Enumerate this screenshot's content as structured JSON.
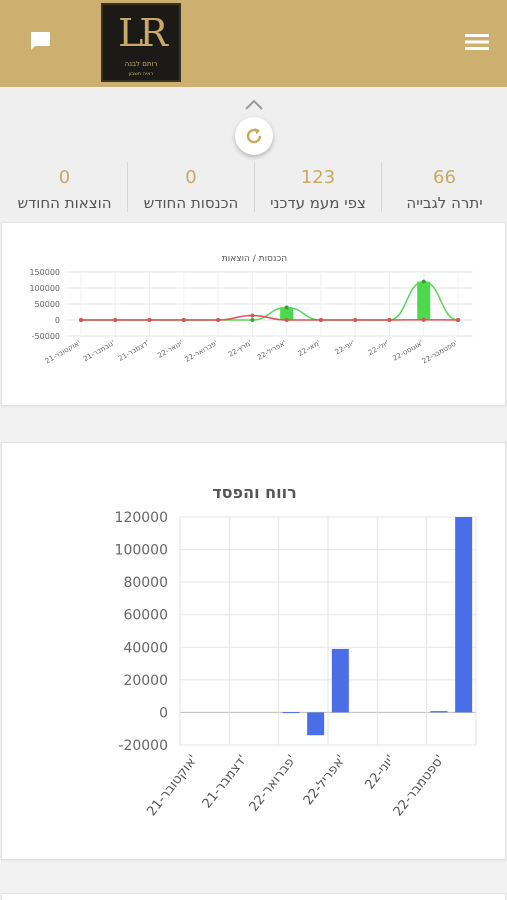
{
  "header": {
    "logo_mark": "LR",
    "logo_text": "רותם לבנה",
    "logo_sub": "ראיה חשבון",
    "colors": {
      "bar": "#cdb06f",
      "logo_bg": "#1b1a17",
      "accent": "#c9a961"
    },
    "icons": {
      "left": "chat-icon",
      "right": "menu-icon",
      "collapse": "chevron-up-icon",
      "refresh": "refresh-icon"
    }
  },
  "summary": {
    "stats": [
      {
        "value": "66",
        "label": "יתרה לגבייה"
      },
      {
        "value": "123",
        "label": "צפי מעמ עדכני"
      },
      {
        "value": "0",
        "label": "הכנסות החודש"
      },
      {
        "value": "0",
        "label": "הוצאות החודש"
      }
    ]
  },
  "chart_data": [
    {
      "type": "line",
      "title": "הכנסות / הוצאות",
      "categories": [
        "אוקטובר-21'",
        "נובמבר-21'",
        "דצמבר-21'",
        "ינואר-22'",
        "פברואר-22'",
        "מרץ-22'",
        "אפריל-22'",
        "מאי-22'",
        "יוני-22'",
        "יולי-22'",
        "אוגוסט-22'",
        "ספטמבר-22'"
      ],
      "series": [
        {
          "kind": "bar",
          "color": "#4cd94c",
          "values": [
            0,
            0,
            0,
            0,
            0,
            0,
            39000,
            0,
            0,
            0,
            120000,
            0
          ]
        },
        {
          "kind": "line",
          "color": "#5cd65c",
          "values": [
            0,
            0,
            0,
            0,
            0,
            0,
            39000,
            0,
            0,
            0,
            120000,
            0
          ]
        },
        {
          "kind": "line",
          "color": "#e05050",
          "values": [
            0,
            0,
            0,
            0,
            0,
            14000,
            0,
            0,
            0,
            0,
            500,
            0
          ]
        }
      ],
      "yticks": [
        "150000",
        "100000",
        "50000",
        "0",
        "-50000"
      ],
      "ylim": [
        -50000,
        150000
      ],
      "grid": true
    },
    {
      "type": "bar",
      "title": "רווח והפסד",
      "categories": [
        "אוקטובר-21'",
        "נובמבר-21'",
        "דצמבר-21'",
        "ינואר-22'",
        "פברואר-22'",
        "מרץ-22'",
        "אפריל-22'",
        "מאי-22'",
        "יוני-22'",
        "יולי-22'",
        "אוגוסט-22'",
        "ספטמבר-22'"
      ],
      "tick_labels": [
        "אוקטובר-21'",
        "דצמבר-21'",
        "פברואר-22'",
        "אפריל-22'",
        "יוני-22'",
        "ספטמבר-22'"
      ],
      "values": [
        0,
        0,
        0,
        0,
        200,
        -14000,
        39000,
        0,
        0,
        0,
        800,
        120000
      ],
      "color": "#4a6ee8",
      "yticks": [
        "120000",
        "100000",
        "80000",
        "60000",
        "40000",
        "20000",
        "0",
        "-20000"
      ],
      "ylim": [
        -20000,
        120000
      ],
      "grid": true
    }
  ]
}
